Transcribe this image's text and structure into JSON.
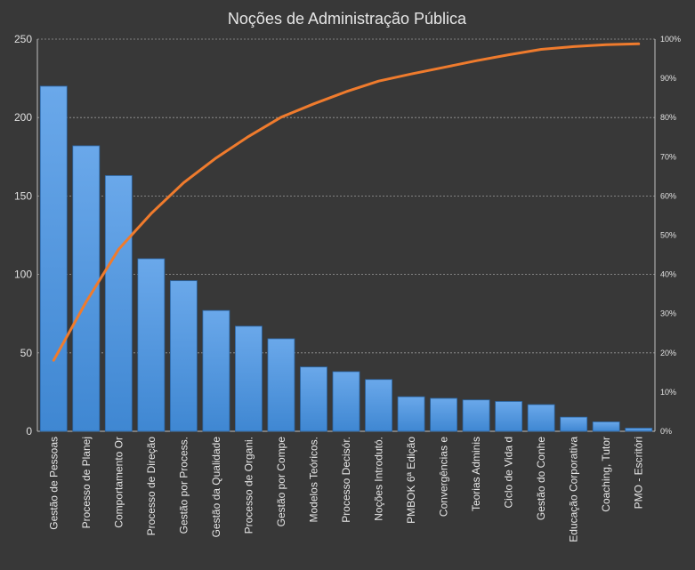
{
  "chart_data": {
    "type": "bar",
    "title": "Noções de Administração Pública",
    "categories": [
      "Gestão de Pessoas",
      "Processo de Planej",
      "Comportamento  Or",
      "Processo de Direção",
      "Gestão por Process.",
      "Gestão da Qualidade",
      "Processo de Organi.",
      "Gestão por Compe",
      "Modelos Teóricos.",
      "Processo Decisór.",
      "Noções Introdutó.",
      "PMBOK 6ª Edição",
      "Convergências e",
      "Teorias Adminis",
      "Ciclo de Vida d",
      "Gestão do  Conhe",
      "Educação Corporativa",
      "Coaching, Tutor",
      "PMO - Escritóri"
    ],
    "series": [
      {
        "type": "bar",
        "color": "#4a8fd6",
        "values": [
          220,
          182,
          163,
          110,
          96,
          77,
          67,
          59,
          41,
          38,
          33,
          22,
          21,
          20,
          19,
          17,
          9,
          6,
          2
        ]
      },
      {
        "type": "line",
        "axis": "right",
        "color": "#ef7b2d",
        "values": [
          0.181,
          0.33,
          0.464,
          0.555,
          0.634,
          0.697,
          0.752,
          0.801,
          0.835,
          0.866,
          0.893,
          0.911,
          0.928,
          0.945,
          0.96,
          0.974,
          0.981,
          0.986,
          0.988
        ]
      }
    ],
    "y_axis": {
      "ylim": [
        0,
        250
      ],
      "ticks": [
        "0",
        "50",
        "100",
        "150",
        "200",
        "250"
      ]
    },
    "y2_axis": {
      "ylim": [
        0,
        1
      ],
      "ticks": [
        "0%",
        "10%",
        "20%",
        "30%",
        "40%",
        "50%",
        "60%",
        "70%",
        "80%",
        "90%",
        "100%"
      ]
    },
    "grid": true,
    "legend": "none"
  },
  "colors": {
    "background": "#383838",
    "bar": "#4a8fd6",
    "line": "#ef7b2d",
    "grid": "#9a9a9a",
    "text": "#e6e6e6"
  }
}
